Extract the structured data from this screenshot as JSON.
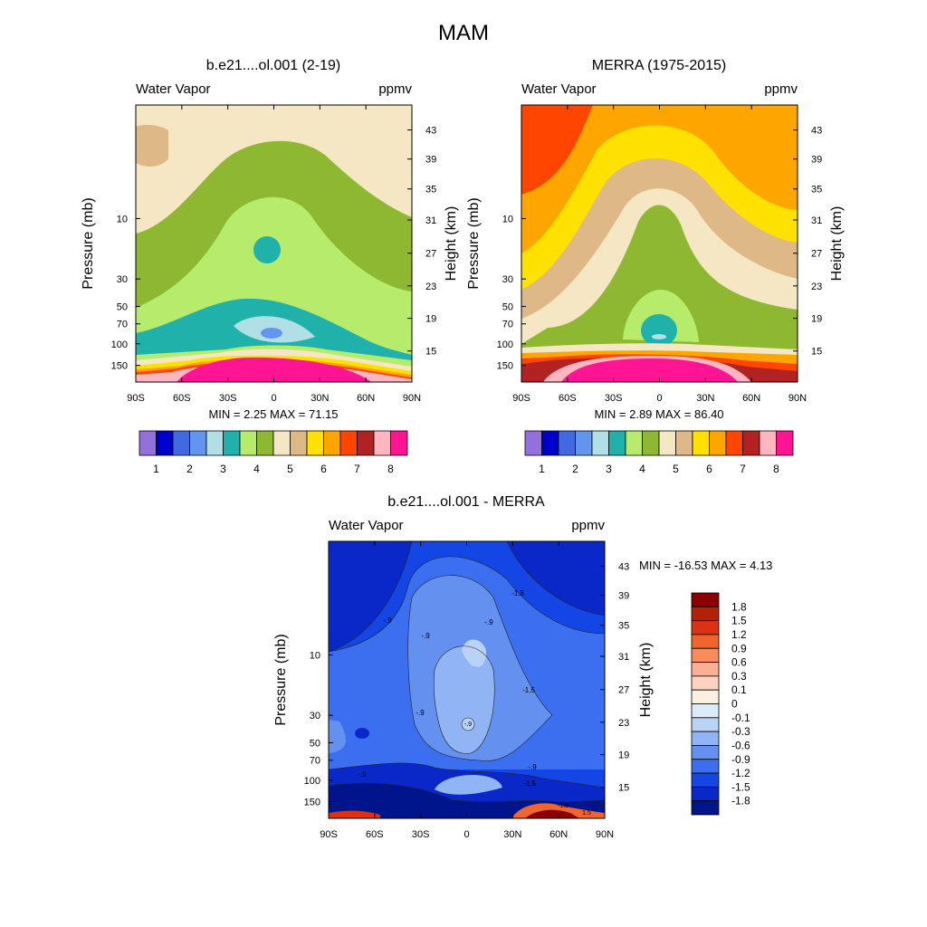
{
  "main_title": "MAM",
  "chart_data": [
    {
      "type": "heatmap",
      "title": "b.e21....ol.001 (2-19)",
      "subtitle_left": "Water Vapor",
      "subtitle_right": "ppmv",
      "ylabel": "Pressure (mb)",
      "y2label": "Height (km)",
      "x_ticks": [
        "90S",
        "60S",
        "30S",
        "0",
        "30N",
        "60N",
        "90N"
      ],
      "x_range": [
        -90,
        90
      ],
      "y_ticks": [
        "10",
        "30",
        "50",
        "70",
        "100",
        "150"
      ],
      "y2_ticks": [
        "43",
        "39",
        "35",
        "31",
        "27",
        "23",
        "19",
        "15"
      ],
      "stats": "MIN =   2.25  MAX =  71.15",
      "colorbar_labels": [
        "1",
        "2",
        "3",
        "4",
        "5",
        "6",
        "7",
        "8"
      ],
      "colorbar_colors": [
        "#9370DB",
        "#0000CD",
        "#4169E1",
        "#6495ED",
        "#B0E0E6",
        "#20B2AA",
        "#B6EB6C",
        "#8FB832",
        "#F5E6C4",
        "#DEB887",
        "#FFE100",
        "#FFA500",
        "#FF4500",
        "#B22222",
        "#FFB6C1",
        "#FF1493"
      ]
    },
    {
      "type": "heatmap",
      "title": "MERRA (1975-2015)",
      "subtitle_left": "Water Vapor",
      "subtitle_right": "ppmv",
      "ylabel": "Pressure (mb)",
      "y2label": "Height (km)",
      "x_ticks": [
        "90S",
        "60S",
        "30S",
        "0",
        "30N",
        "60N",
        "90N"
      ],
      "x_range": [
        -90,
        90
      ],
      "y_ticks": [
        "10",
        "30",
        "50",
        "70",
        "100",
        "150"
      ],
      "y2_ticks": [
        "43",
        "39",
        "35",
        "31",
        "27",
        "23",
        "19",
        "15"
      ],
      "stats": "MIN =   2.89  MAX =  86.40",
      "colorbar_labels": [
        "1",
        "2",
        "3",
        "4",
        "5",
        "6",
        "7",
        "8"
      ],
      "colorbar_colors": [
        "#9370DB",
        "#0000CD",
        "#4169E1",
        "#6495ED",
        "#B0E0E6",
        "#20B2AA",
        "#B6EB6C",
        "#8FB832",
        "#F5E6C4",
        "#DEB887",
        "#FFE100",
        "#FFA500",
        "#FF4500",
        "#B22222",
        "#FFB6C1",
        "#FF1493"
      ]
    },
    {
      "type": "heatmap",
      "title": "b.e21....ol.001 - MERRA",
      "subtitle_left": "Water Vapor",
      "subtitle_right": "ppmv",
      "ylabel": "Pressure (mb)",
      "y2label": "Height (km)",
      "x_ticks": [
        "90S",
        "60S",
        "30S",
        "0",
        "30N",
        "60N",
        "90N"
      ],
      "x_range": [
        -90,
        90
      ],
      "y_ticks": [
        "10",
        "30",
        "50",
        "70",
        "100",
        "150"
      ],
      "y2_ticks": [
        "43",
        "39",
        "35",
        "31",
        "27",
        "23",
        "19",
        "15"
      ],
      "stats": "MIN = -16.53  MAX =    4.13",
      "contour_labels": [
        "-1.8",
        "-.9",
        "-.9",
        "-.9",
        "-1.5",
        "-.9",
        "-.9",
        "-.9",
        "-.9",
        "-1.5",
        "-1.5",
        "1.5"
      ],
      "colorbar_labels": [
        "1.8",
        "1.5",
        "1.2",
        "0.9",
        "0.6",
        "0.3",
        "0.1",
        "0",
        "-0.1",
        "-0.3",
        "-0.6",
        "-0.9",
        "-1.2",
        "-1.5",
        "-1.8"
      ],
      "colorbar_colors": [
        "#8B0000",
        "#B22206",
        "#DC3214",
        "#F0642D",
        "#FA8C5A",
        "#FCAF91",
        "#FDD2BE",
        "#FAF0E1",
        "#DCEBFA",
        "#B9D2F5",
        "#91B4F5",
        "#6490F0",
        "#3C6EF0",
        "#1446E6",
        "#0A28C8",
        "#00148C"
      ]
    }
  ]
}
